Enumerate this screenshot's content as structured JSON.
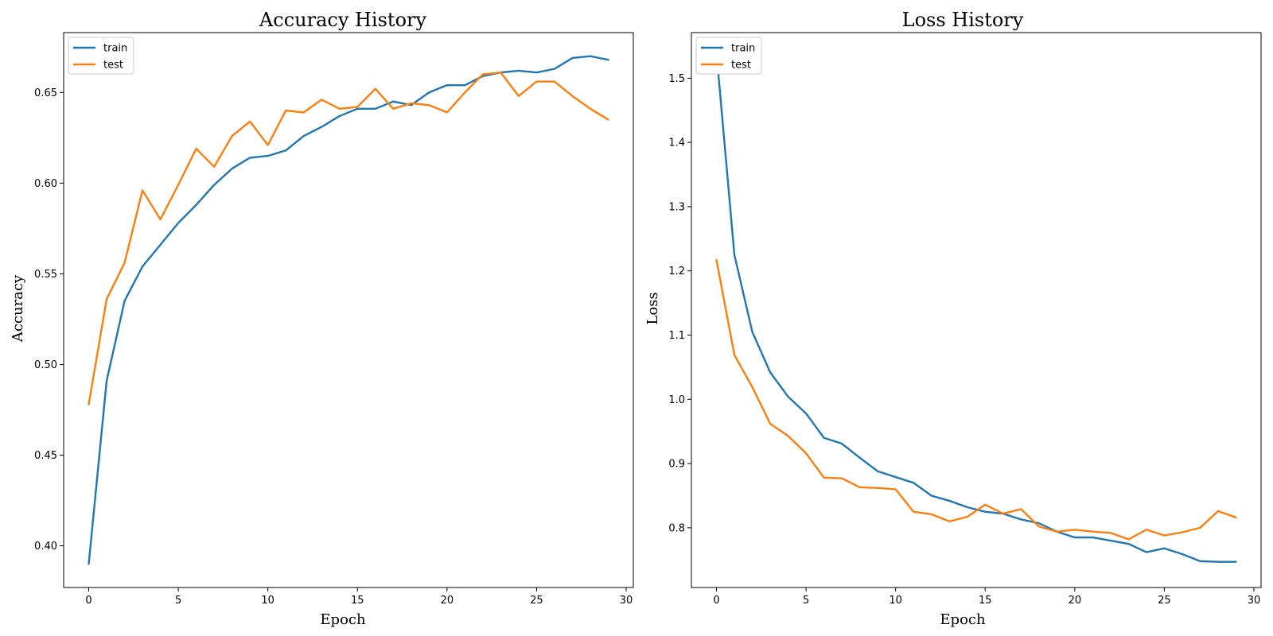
{
  "chart_data": [
    {
      "type": "line",
      "title": "Accuracy History",
      "xlabel": "Epoch",
      "ylabel": "Accuracy",
      "xlim": [
        -1.4,
        30.4
      ],
      "ylim": [
        0.377,
        0.683
      ],
      "xticks": [
        0,
        5,
        10,
        15,
        20,
        25,
        30
      ],
      "yticks": [
        0.4,
        0.45,
        0.5,
        0.55,
        0.6,
        0.65
      ],
      "ytick_labels": [
        "0.40",
        "0.45",
        "0.50",
        "0.55",
        "0.60",
        "0.65"
      ],
      "grid": false,
      "legend": "top-left",
      "x": [
        0,
        1,
        2,
        3,
        4,
        5,
        6,
        7,
        8,
        9,
        10,
        11,
        12,
        13,
        14,
        15,
        16,
        17,
        18,
        19,
        20,
        21,
        22,
        23,
        24,
        25,
        26,
        27,
        28,
        29
      ],
      "series": [
        {
          "name": "train",
          "color": "#1f77b4",
          "values": [
            0.39,
            0.491,
            0.535,
            0.554,
            0.566,
            0.578,
            0.588,
            0.599,
            0.608,
            0.614,
            0.615,
            0.618,
            0.626,
            0.631,
            0.637,
            0.641,
            0.641,
            0.645,
            0.643,
            0.65,
            0.654,
            0.654,
            0.659,
            0.661,
            0.662,
            0.661,
            0.663,
            0.669,
            0.67,
            0.668
          ]
        },
        {
          "name": "test",
          "color": "#ff7f0e",
          "values": [
            0.478,
            0.536,
            0.556,
            0.596,
            0.58,
            0.599,
            0.619,
            0.609,
            0.626,
            0.634,
            0.621,
            0.64,
            0.639,
            0.646,
            0.641,
            0.642,
            0.652,
            0.641,
            0.644,
            0.643,
            0.639,
            0.65,
            0.66,
            0.661,
            0.648,
            0.656,
            0.656,
            0.648,
            0.641,
            0.635
          ]
        }
      ]
    },
    {
      "type": "line",
      "title": "Loss History",
      "xlabel": "Epoch",
      "ylabel": "Loss",
      "xlim": [
        -1.4,
        30.4
      ],
      "ylim": [
        0.707,
        1.571
      ],
      "xticks": [
        0,
        5,
        10,
        15,
        20,
        25,
        30
      ],
      "yticks": [
        0.8,
        0.9,
        1.0,
        1.1,
        1.2,
        1.3,
        1.4,
        1.5
      ],
      "ytick_labels": [
        "0.8",
        "0.9",
        "1.0",
        "1.1",
        "1.2",
        "1.3",
        "1.4",
        "1.5"
      ],
      "grid": false,
      "legend": "top-left",
      "x": [
        0,
        1,
        2,
        3,
        4,
        5,
        6,
        7,
        8,
        9,
        10,
        11,
        12,
        13,
        14,
        15,
        16,
        17,
        18,
        19,
        20,
        21,
        22,
        23,
        24,
        25,
        26,
        27,
        28,
        29
      ],
      "series": [
        {
          "name": "train",
          "color": "#1f77b4",
          "values": [
            1.54,
            1.225,
            1.105,
            1.042,
            1.004,
            0.978,
            0.94,
            0.931,
            0.909,
            0.888,
            0.879,
            0.87,
            0.85,
            0.842,
            0.832,
            0.825,
            0.822,
            0.813,
            0.807,
            0.794,
            0.785,
            0.785,
            0.78,
            0.775,
            0.762,
            0.768,
            0.759,
            0.748,
            0.747,
            0.747
          ]
        },
        {
          "name": "test",
          "color": "#ff7f0e",
          "values": [
            1.217,
            1.069,
            1.019,
            0.962,
            0.943,
            0.916,
            0.878,
            0.877,
            0.863,
            0.862,
            0.86,
            0.825,
            0.821,
            0.81,
            0.817,
            0.836,
            0.822,
            0.829,
            0.802,
            0.794,
            0.797,
            0.794,
            0.792,
            0.782,
            0.797,
            0.788,
            0.793,
            0.8,
            0.826,
            0.816
          ]
        }
      ]
    }
  ]
}
